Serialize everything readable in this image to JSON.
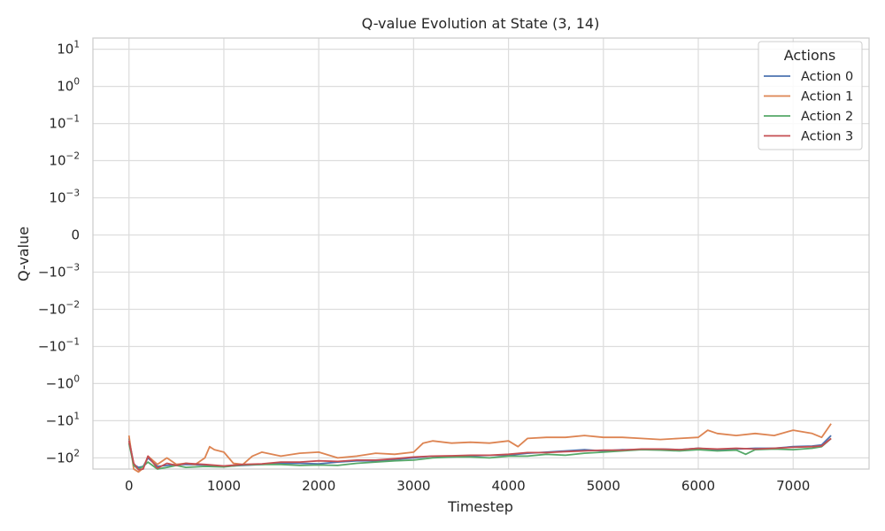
{
  "chart_data": {
    "type": "line",
    "title": "Q-value Evolution at State (3, 14)",
    "xlabel": "Timestep",
    "ylabel": "Q-value",
    "xlim": [
      -380,
      7800
    ],
    "x_ticks": [
      0,
      1000,
      2000,
      3000,
      4000,
      5000,
      6000,
      7000
    ],
    "yscale": "symlog",
    "symlog_linthresh": 0.001,
    "ylim": [
      -200,
      20
    ],
    "y_ticks": [
      {
        "base": "10",
        "exp": "1",
        "sign": ""
      },
      {
        "base": "10",
        "exp": "0",
        "sign": ""
      },
      {
        "base": "10",
        "exp": "−1",
        "sign": ""
      },
      {
        "base": "10",
        "exp": "−2",
        "sign": ""
      },
      {
        "base": "10",
        "exp": "−3",
        "sign": ""
      },
      {
        "base": "0",
        "exp": "",
        "sign": ""
      },
      {
        "base": "10",
        "exp": "−3",
        "sign": "−"
      },
      {
        "base": "10",
        "exp": "−2",
        "sign": "−"
      },
      {
        "base": "10",
        "exp": "−1",
        "sign": "−"
      },
      {
        "base": "10",
        "exp": "0",
        "sign": "−"
      },
      {
        "base": "10",
        "exp": "1",
        "sign": "−"
      },
      {
        "base": "10",
        "exp": "2",
        "sign": "−"
      }
    ],
    "y_tick_values": [
      10,
      1,
      0.1,
      0.01,
      0.001,
      0,
      -0.001,
      -0.01,
      -0.1,
      -1,
      -10,
      -100
    ],
    "grid": true,
    "legend": {
      "title": "Actions",
      "placement": "top-right"
    },
    "series": [
      {
        "name": "Action 0",
        "color": "#4c72b0",
        "x": [
          0,
          50,
          100,
          150,
          200,
          300,
          400,
          500,
          600,
          800,
          1000,
          1200,
          1400,
          1600,
          1800,
          2000,
          2200,
          2400,
          2600,
          2800,
          3000,
          3200,
          3400,
          3600,
          3800,
          4000,
          4200,
          4400,
          4600,
          4800,
          5000,
          5200,
          5400,
          5600,
          5800,
          6000,
          6200,
          6400,
          6600,
          6800,
          7000,
          7200,
          7300,
          7400
        ],
        "y": [
          -30,
          -150,
          -180,
          -170,
          -100,
          -170,
          -160,
          -150,
          -150,
          -155,
          -170,
          -160,
          -150,
          -140,
          -140,
          -145,
          -130,
          -120,
          -120,
          -110,
          -100,
          -90,
          -95,
          -90,
          -85,
          -85,
          -75,
          -70,
          -65,
          -60,
          -65,
          -60,
          -60,
          -58,
          -60,
          -55,
          -60,
          -58,
          -55,
          -55,
          -50,
          -48,
          -45,
          -25
        ]
      },
      {
        "name": "Action 1",
        "color": "#dd8452",
        "x": [
          0,
          50,
          100,
          150,
          200,
          300,
          400,
          500,
          600,
          700,
          800,
          850,
          900,
          1000,
          1100,
          1200,
          1300,
          1400,
          1600,
          1800,
          2000,
          2200,
          2400,
          2600,
          2800,
          3000,
          3100,
          3200,
          3400,
          3600,
          3800,
          4000,
          4100,
          4200,
          4400,
          4600,
          4800,
          5000,
          5200,
          5400,
          5600,
          5800,
          6000,
          6100,
          6200,
          6400,
          6600,
          6800,
          7000,
          7200,
          7300,
          7400
        ],
        "y": [
          -25,
          -200,
          -240,
          -190,
          -90,
          -150,
          -100,
          -150,
          -140,
          -150,
          -100,
          -50,
          -60,
          -70,
          -140,
          -150,
          -90,
          -70,
          -90,
          -75,
          -70,
          -100,
          -90,
          -75,
          -80,
          -70,
          -40,
          -35,
          -40,
          -38,
          -40,
          -35,
          -50,
          -30,
          -28,
          -28,
          -25,
          -28,
          -28,
          -30,
          -32,
          -30,
          -28,
          -18,
          -22,
          -25,
          -22,
          -25,
          -18,
          -22,
          -28,
          -12
        ]
      },
      {
        "name": "Action 2",
        "color": "#55a868",
        "x": [
          0,
          50,
          100,
          150,
          200,
          300,
          400,
          500,
          600,
          800,
          1000,
          1200,
          1400,
          1600,
          1800,
          2000,
          2200,
          2400,
          2600,
          2800,
          3000,
          3200,
          3400,
          3600,
          3800,
          4000,
          4200,
          4400,
          4600,
          4800,
          5000,
          5200,
          5400,
          5600,
          5800,
          6000,
          6200,
          6400,
          6500,
          6600,
          6800,
          7000,
          7200,
          7300,
          7400
        ],
        "y": [
          -40,
          -160,
          -200,
          -170,
          -130,
          -200,
          -180,
          -160,
          -180,
          -170,
          -175,
          -155,
          -150,
          -150,
          -160,
          -155,
          -160,
          -140,
          -130,
          -120,
          -115,
          -100,
          -95,
          -95,
          -100,
          -90,
          -90,
          -80,
          -85,
          -75,
          -70,
          -65,
          -60,
          -62,
          -65,
          -60,
          -65,
          -62,
          -80,
          -60,
          -58,
          -60,
          -55,
          -50,
          -30
        ]
      },
      {
        "name": "Action 3",
        "color": "#c44e52",
        "x": [
          0,
          50,
          100,
          150,
          200,
          300,
          400,
          500,
          600,
          800,
          1000,
          1200,
          1400,
          1600,
          1800,
          2000,
          2200,
          2400,
          2600,
          2800,
          3000,
          3200,
          3400,
          3600,
          3800,
          4000,
          4200,
          4400,
          4600,
          4800,
          5000,
          5200,
          5400,
          5600,
          5800,
          6000,
          6200,
          6400,
          6600,
          6800,
          7000,
          7200,
          7300,
          7400
        ],
        "y": [
          -35,
          -140,
          -210,
          -200,
          -90,
          -190,
          -140,
          -160,
          -140,
          -150,
          -165,
          -150,
          -145,
          -130,
          -130,
          -120,
          -125,
          -115,
          -115,
          -105,
          -95,
          -90,
          -88,
          -85,
          -85,
          -80,
          -72,
          -72,
          -68,
          -65,
          -62,
          -62,
          -58,
          -58,
          -60,
          -55,
          -58,
          -55,
          -58,
          -55,
          -52,
          -50,
          -48,
          -30
        ]
      }
    ]
  }
}
